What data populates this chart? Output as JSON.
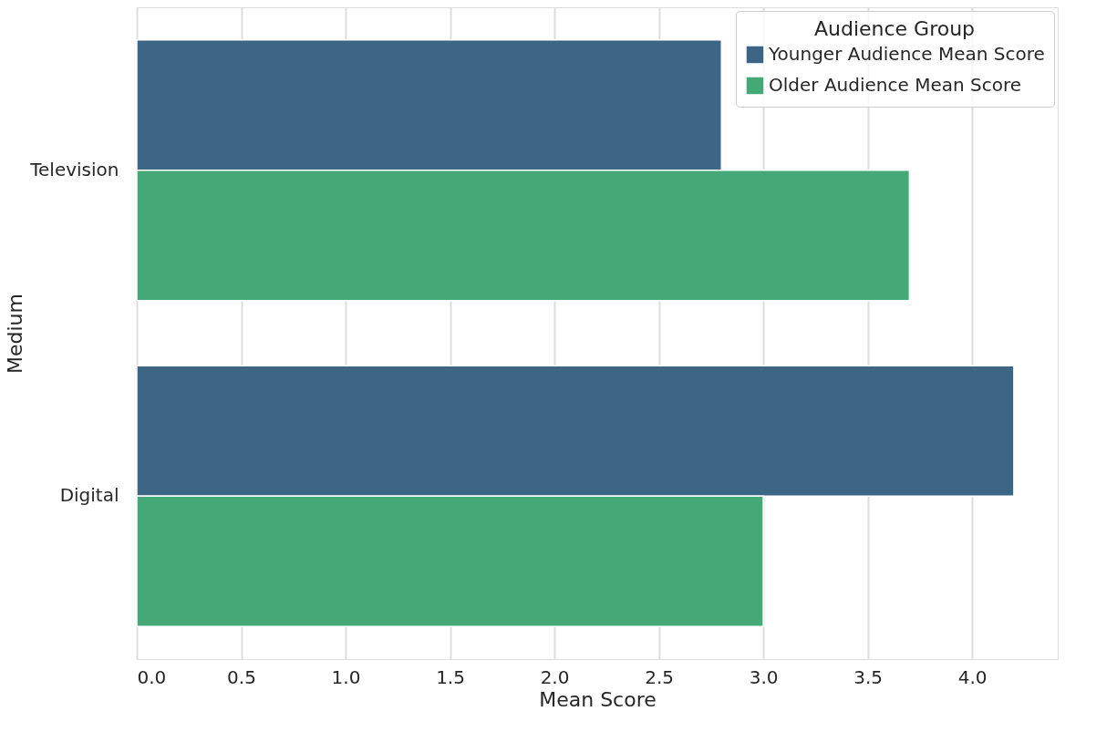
{
  "chart_data": {
    "type": "bar",
    "orientation": "horizontal",
    "xlabel": "Mean Score",
    "ylabel": "Medium",
    "legend_title": "Audience Group",
    "categories": [
      "Television",
      "Digital"
    ],
    "series": [
      {
        "name": "Younger Audience Mean Score",
        "color": "#3d6584",
        "values": [
          2.8,
          4.2
        ]
      },
      {
        "name": "Older Audience Mean Score",
        "color": "#45a877",
        "values": [
          3.7,
          3.0
        ]
      }
    ],
    "xlim": [
      0,
      4.41
    ],
    "xticks": [
      {
        "value": 0,
        "label": "0.0"
      },
      {
        "value": 0.5,
        "label": "0.5"
      },
      {
        "value": 1,
        "label": "1.0"
      },
      {
        "value": 1.5,
        "label": "1.5"
      },
      {
        "value": 2,
        "label": "2.0"
      },
      {
        "value": 2.5,
        "label": "2.5"
      },
      {
        "value": 3,
        "label": "3.0"
      },
      {
        "value": 3.5,
        "label": "3.5"
      },
      {
        "value": 4,
        "label": "4.0"
      }
    ],
    "grid": "x",
    "legend": "top right"
  }
}
